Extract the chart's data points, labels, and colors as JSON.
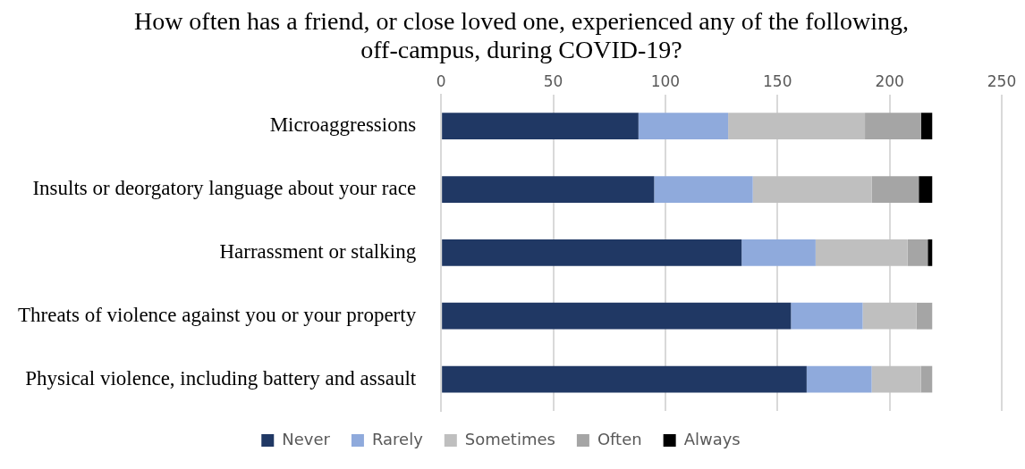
{
  "chart_data": {
    "type": "bar",
    "orientation": "horizontal",
    "stacked": true,
    "title": "How often has a friend, or close loved one, experienced any of the following, off-campus, during COVID-19?",
    "categories": [
      "Microaggressions",
      "Insults or deorgatory language about your race",
      "Harrassment or stalking",
      "Threats of violence against you or your property",
      "Physical violence, including battery and assault"
    ],
    "series": [
      {
        "name": "Never",
        "color": "#203864",
        "values": [
          88,
          95,
          134,
          156,
          163
        ]
      },
      {
        "name": "Rarely",
        "color": "#8faadc",
        "values": [
          40,
          44,
          33,
          32,
          29
        ]
      },
      {
        "name": "Sometimes",
        "color": "#bfbfbf",
        "values": [
          61,
          53,
          41,
          24,
          22
        ]
      },
      {
        "name": "Often",
        "color": "#a5a5a5",
        "values": [
          25,
          21,
          9,
          7,
          5
        ]
      },
      {
        "name": "Always",
        "color": "#000000",
        "values": [
          5,
          6,
          2,
          0,
          0
        ]
      }
    ],
    "xlim": [
      0,
      250
    ],
    "xticks": [
      0,
      50,
      100,
      150,
      200,
      250
    ],
    "grid": "x",
    "legend": "bottom"
  }
}
